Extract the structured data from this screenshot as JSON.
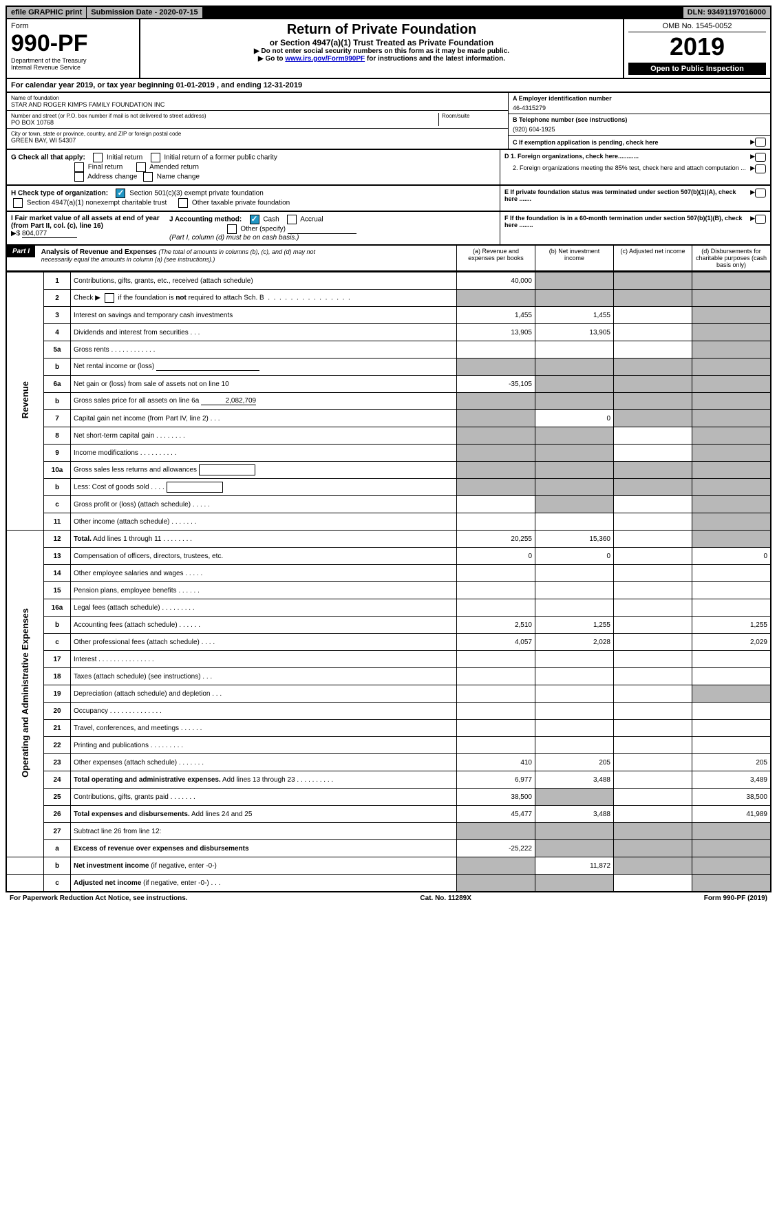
{
  "top": {
    "efile": "efile GRAPHIC print",
    "submission": "Submission Date - 2020-07-15",
    "dln": "DLN: 93491197016000"
  },
  "header": {
    "form_label": "Form",
    "form_number": "990-PF",
    "dept": "Department of the Treasury",
    "irs": "Internal Revenue Service",
    "title": "Return of Private Foundation",
    "subtitle": "or Section 4947(a)(1) Trust Treated as Private Foundation",
    "instr1": "▶ Do not enter social security numbers on this form as it may be made public.",
    "instr2_pre": "▶ Go to ",
    "instr2_link": "www.irs.gov/Form990PF",
    "instr2_post": " for instructions and the latest information.",
    "omb": "OMB No. 1545-0052",
    "year": "2019",
    "open": "Open to Public Inspection"
  },
  "calyear": "For calendar year 2019, or tax year beginning 01-01-2019                                  , and ending 12-31-2019",
  "info": {
    "name_label": "Name of foundation",
    "name": "STAR AND ROGER KIMPS FAMILY FOUNDATION INC",
    "addr_label": "Number and street (or P.O. box number if mail is not delivered to street address)",
    "room_label": "Room/suite",
    "addr": "PO BOX 10768",
    "city_label": "City or town, state or province, country, and ZIP or foreign postal code",
    "city": "GREEN BAY, WI  54307",
    "a_label": "A Employer identification number",
    "a_val": "46-4315279",
    "b_label": "B Telephone number (see instructions)",
    "b_val": "(920) 604-1925",
    "c_label": "C If exemption application is pending, check here",
    "d1": "D 1. Foreign organizations, check here............",
    "d2": "2. Foreign organizations meeting the 85% test, check here and attach computation ...",
    "e": "E  If private foundation status was terminated under section 507(b)(1)(A), check here .......",
    "f": "F  If the foundation is in a 60-month termination under section 507(b)(1)(B), check here ........"
  },
  "checks": {
    "g_label": "G Check all that apply:",
    "initial": "Initial return",
    "initial_former": "Initial return of a former public charity",
    "final": "Final return",
    "amended": "Amended return",
    "addr_change": "Address change",
    "name_change": "Name change",
    "h_label": "H Check type of organization:",
    "h_501c3": "Section 501(c)(3) exempt private foundation",
    "h_4947": "Section 4947(a)(1) nonexempt charitable trust",
    "h_other": "Other taxable private foundation",
    "i_label": "I Fair market value of all assets at end of year (from Part II, col. (c), line 16)",
    "i_val": "804,077",
    "j_label": "J Accounting method:",
    "j_cash": "Cash",
    "j_accrual": "Accrual",
    "j_other": "Other (specify)",
    "j_note": "(Part I, column (d) must be on cash basis.)"
  },
  "part1": {
    "label": "Part I",
    "title": "Analysis of Revenue and Expenses",
    "title_note": "(The total of amounts in columns (b), (c), and (d) may not necessarily equal the amounts in column (a) (see instructions).)",
    "col_a": "(a)    Revenue and expenses per books",
    "col_b": "(b)   Net investment income",
    "col_c": "(c)   Adjusted net income",
    "col_d": "(d)   Disbursements for charitable purposes (cash basis only)"
  },
  "revenue_label": "Revenue",
  "expenses_label": "Operating and Administrative Expenses",
  "rows": {
    "r1": {
      "n": "1",
      "d": "Contributions, gifts, grants, etc., received (attach schedule)",
      "a": "40,000"
    },
    "r2": {
      "n": "2",
      "d": "Check ▶ ▢ if the foundation is <b>not</b> required to attach Sch. B"
    },
    "r3": {
      "n": "3",
      "d": "Interest on savings and temporary cash investments",
      "a": "1,455",
      "b": "1,455"
    },
    "r4": {
      "n": "4",
      "d": "Dividends and interest from securities   .   .   .",
      "a": "13,905",
      "b": "13,905"
    },
    "r5a": {
      "n": "5a",
      "d": "Gross rents   .   .   .   .   .   .   .   .   .   .   .   ."
    },
    "r5b": {
      "n": "b",
      "d": "Net rental income or (loss)"
    },
    "r6a": {
      "n": "6a",
      "d": "Net gain or (loss) from sale of assets not on line 10",
      "a": "-35,105"
    },
    "r6b": {
      "n": "b",
      "d": "Gross sales price for all assets on line 6a",
      "v": "2,082,709"
    },
    "r7": {
      "n": "7",
      "d": "Capital gain net income (from Part IV, line 2)   .   .   .",
      "b": "0"
    },
    "r8": {
      "n": "8",
      "d": "Net short-term capital gain   .   .   .   .   .   .   .   ."
    },
    "r9": {
      "n": "9",
      "d": "Income modifications   .   .   .   .   .   .   .   .   .   ."
    },
    "r10a": {
      "n": "10a",
      "d": "Gross sales less returns and allowances"
    },
    "r10b": {
      "n": "b",
      "d": "Less: Cost of goods sold   .   .   .   ."
    },
    "r10c": {
      "n": "c",
      "d": "Gross profit or (loss) (attach schedule)   .   .   .   .   ."
    },
    "r11": {
      "n": "11",
      "d": "Other income (attach schedule)   .   .   .   .   .   .   ."
    },
    "r12": {
      "n": "12",
      "d": "<b>Total.</b> Add lines 1 through 11   .   .   .   .   .   .   .   .",
      "a": "20,255",
      "b": "15,360"
    },
    "r13": {
      "n": "13",
      "d": "Compensation of officers, directors, trustees, etc.",
      "a": "0",
      "b": "0",
      "dd": "0"
    },
    "r14": {
      "n": "14",
      "d": "Other employee salaries and wages   .   .   .   .   ."
    },
    "r15": {
      "n": "15",
      "d": "Pension plans, employee benefits   .   .   .   .   .   ."
    },
    "r16a": {
      "n": "16a",
      "d": "Legal fees (attach schedule)   .   .   .   .   .   .   .   .   ."
    },
    "r16b": {
      "n": "b",
      "d": "Accounting fees (attach schedule)   .   .   .   .   .   .",
      "a": "2,510",
      "b": "1,255",
      "dd": "1,255"
    },
    "r16c": {
      "n": "c",
      "d": "Other professional fees (attach schedule)   .   .   .   .",
      "a": "4,057",
      "b": "2,028",
      "dd": "2,029"
    },
    "r17": {
      "n": "17",
      "d": "Interest   .   .   .   .   .   .   .   .   .   .   .   .   .   .   ."
    },
    "r18": {
      "n": "18",
      "d": "Taxes (attach schedule) (see instructions)   .   .   ."
    },
    "r19": {
      "n": "19",
      "d": "Depreciation (attach schedule) and depletion   .   .   ."
    },
    "r20": {
      "n": "20",
      "d": "Occupancy   .   .   .   .   .   .   .   .   .   .   .   .   .   ."
    },
    "r21": {
      "n": "21",
      "d": "Travel, conferences, and meetings   .   .   .   .   .   ."
    },
    "r22": {
      "n": "22",
      "d": "Printing and publications   .   .   .   .   .   .   .   .   ."
    },
    "r23": {
      "n": "23",
      "d": "Other expenses (attach schedule)   .   .   .   .   .   .   .",
      "a": "410",
      "b": "205",
      "dd": "205"
    },
    "r24": {
      "n": "24",
      "d": "<b>Total operating and administrative expenses.</b> Add lines 13 through 23   .   .   .   .   .   .   .   .   .   .",
      "a": "6,977",
      "b": "3,488",
      "dd": "3,489"
    },
    "r25": {
      "n": "25",
      "d": "Contributions, gifts, grants paid   .   .   .   .   .   .   .",
      "a": "38,500",
      "dd": "38,500"
    },
    "r26": {
      "n": "26",
      "d": "<b>Total expenses and disbursements.</b> Add lines 24 and 25",
      "a": "45,477",
      "b": "3,488",
      "dd": "41,989"
    },
    "r27": {
      "n": "27",
      "d": "Subtract line 26 from line 12:"
    },
    "r27a": {
      "n": "a",
      "d": "<b>Excess of revenue over expenses and disbursements</b>",
      "a": "-25,222"
    },
    "r27b": {
      "n": "b",
      "d": "<b>Net investment income</b> (if negative, enter -0-)",
      "b": "11,872"
    },
    "r27c": {
      "n": "c",
      "d": "<b>Adjusted net income</b> (if negative, enter -0-)   .   .   ."
    }
  },
  "footer": {
    "left": "For Paperwork Reduction Act Notice, see instructions.",
    "center": "Cat. No. 11289X",
    "right": "Form 990-PF (2019)"
  }
}
